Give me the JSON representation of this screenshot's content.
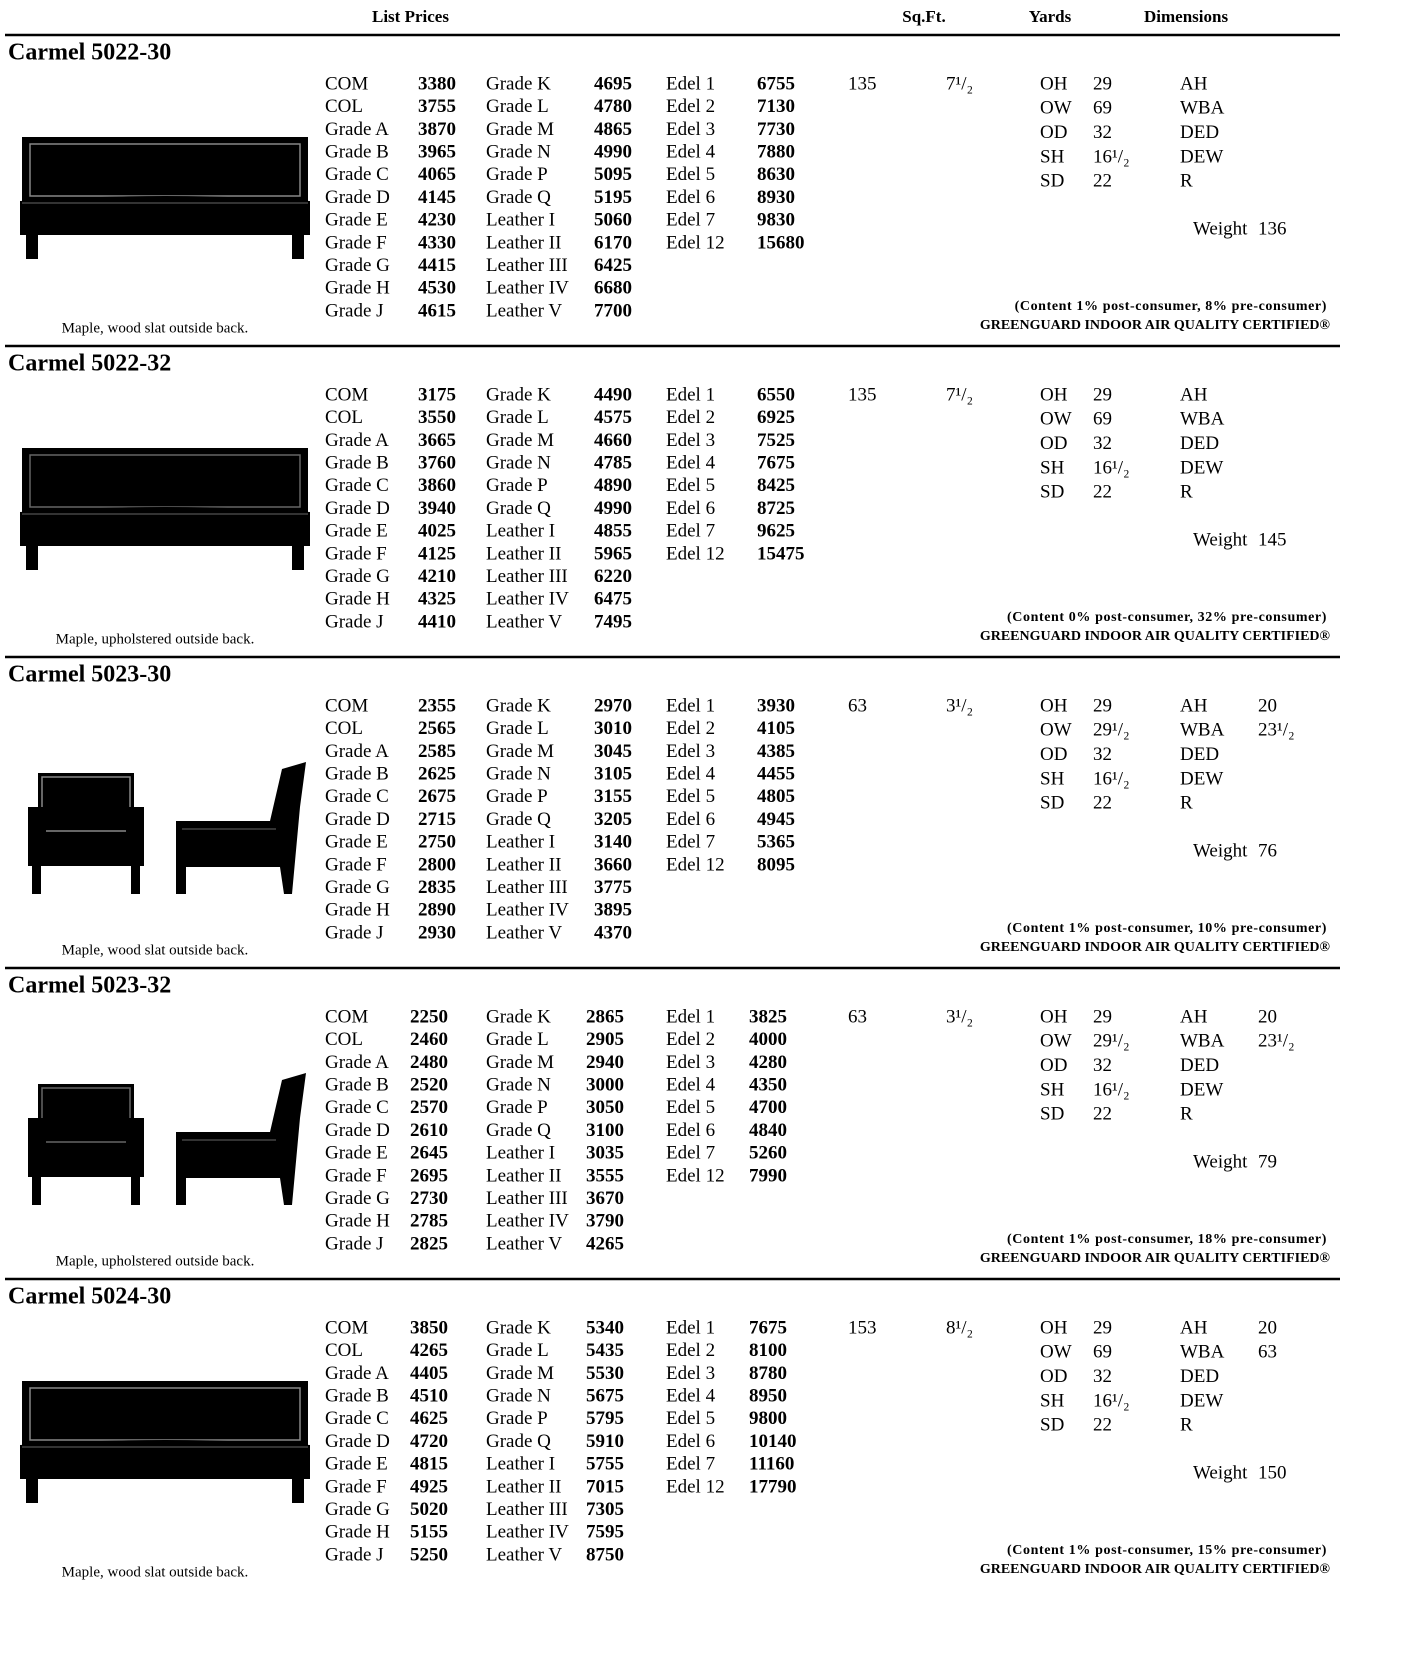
{
  "header": {
    "list_prices": "List Prices",
    "sqft": "Sq.Ft.",
    "yards": "Yards",
    "dimensions": "Dimensions"
  },
  "products": [
    {
      "title": "Carmel 5022-30",
      "caption": "Maple, wood slat outside back.",
      "columns": [
        {
          "labels": [
            "COM",
            "COL",
            "Grade A",
            "Grade B",
            "Grade C",
            "Grade D",
            "Grade E",
            "Grade F",
            "Grade G",
            "Grade H",
            "Grade J"
          ],
          "values": [
            3380,
            3755,
            3870,
            3965,
            4065,
            4145,
            4230,
            4330,
            4415,
            4530,
            4615
          ]
        },
        {
          "labels": [
            "Grade K",
            "Grade L",
            "Grade M",
            "Grade N",
            "Grade P",
            "Grade Q",
            "Leather I",
            "Leather II",
            "Leather III",
            "Leather IV",
            "Leather V"
          ],
          "values": [
            4695,
            4780,
            4865,
            4990,
            5095,
            5195,
            5060,
            6170,
            6425,
            6680,
            7700
          ]
        },
        {
          "labels": [
            "Edel 1",
            "Edel 2",
            "Edel 3",
            "Edel 4",
            "Edel 5",
            "Edel 6",
            "Edel 7",
            "Edel 12"
          ],
          "values": [
            6755,
            7130,
            7730,
            7880,
            8630,
            8930,
            9830,
            15680
          ]
        }
      ],
      "sqft": 135,
      "yards": "7¹/₂",
      "dims": [
        [
          "OH",
          29
        ],
        [
          "OW",
          69
        ],
        [
          "OD",
          32
        ],
        [
          "SH",
          "16¹/₂"
        ],
        [
          "SD",
          22
        ]
      ],
      "extra": [
        [
          "AH"
        ],
        [
          "WBA"
        ],
        [
          "DED"
        ],
        [
          "DEW"
        ],
        [
          "R"
        ]
      ],
      "weight": {
        "label": "Weight",
        "value": 136
      },
      "content": "(Content 1% post-consumer, 8% pre-consumer)",
      "certification": "GREENGUARD INDOOR AIR QUALITY CERTIFIED®"
    },
    {
      "title": "Carmel 5022-32",
      "caption": "Maple, upholstered outside back.",
      "columns": [
        {
          "labels": [
            "COM",
            "COL",
            "Grade A",
            "Grade B",
            "Grade C",
            "Grade D",
            "Grade E",
            "Grade F",
            "Grade G",
            "Grade H",
            "Grade J"
          ],
          "values": [
            3175,
            3550,
            3665,
            3760,
            3860,
            3940,
            4025,
            4125,
            4210,
            4325,
            4410
          ]
        },
        {
          "labels": [
            "Grade K",
            "Grade L",
            "Grade M",
            "Grade N",
            "Grade P",
            "Grade Q",
            "Leather I",
            "Leather II",
            "Leather III",
            "Leather IV",
            "Leather V"
          ],
          "values": [
            4490,
            4575,
            4660,
            4785,
            4890,
            4990,
            4855,
            5965,
            6220,
            6475,
            7495
          ]
        },
        {
          "labels": [
            "Edel 1",
            "Edel 2",
            "Edel 3",
            "Edel 4",
            "Edel 5",
            "Edel 6",
            "Edel 7",
            "Edel 12"
          ],
          "values": [
            6550,
            6925,
            7525,
            7675,
            8425,
            8725,
            9625,
            15475
          ]
        }
      ],
      "sqft": 135,
      "yards": "7¹/₂",
      "dims": [
        [
          "OH",
          29
        ],
        [
          "OW",
          69
        ],
        [
          "OD",
          32
        ],
        [
          "SH",
          "16¹/₂"
        ],
        [
          "SD",
          22
        ]
      ],
      "extra": [
        [
          "AH"
        ],
        [
          "WBA"
        ],
        [
          "DED"
        ],
        [
          "DEW"
        ],
        [
          "R"
        ]
      ],
      "weight": {
        "label": "Weight",
        "value": 145
      },
      "content": "(Content 0% post-consumer, 32% pre-consumer)",
      "certification": "GREENGUARD INDOOR AIR QUALITY CERTIFIED®"
    },
    {
      "title": "Carmel 5023-30",
      "caption": "Maple, wood slat outside back.",
      "columns": [
        {
          "labels": [
            "COM",
            "COL",
            "Grade A",
            "Grade B",
            "Grade C",
            "Grade D",
            "Grade E",
            "Grade F",
            "Grade G",
            "Grade H",
            "Grade J"
          ],
          "values": [
            2355,
            2565,
            2585,
            2625,
            2675,
            2715,
            2750,
            2800,
            2835,
            2890,
            2930
          ]
        },
        {
          "labels": [
            "Grade K",
            "Grade L",
            "Grade M",
            "Grade N",
            "Grade P",
            "Grade Q",
            "Leather I",
            "Leather II",
            "Leather III",
            "Leather IV",
            "Leather V"
          ],
          "values": [
            2970,
            3010,
            3045,
            3105,
            3155,
            3205,
            3140,
            3660,
            3775,
            3895,
            4370
          ]
        },
        {
          "labels": [
            "Edel 1",
            "Edel 2",
            "Edel 3",
            "Edel 4",
            "Edel 5",
            "Edel 6",
            "Edel 7",
            "Edel 12"
          ],
          "values": [
            3930,
            4105,
            4385,
            4455,
            4805,
            4945,
            5365,
            8095
          ]
        }
      ],
      "sqft": 63,
      "yards": "3¹/₂",
      "dims": [
        [
          "OH",
          29
        ],
        [
          "OW",
          "29¹/₂"
        ],
        [
          "OD",
          32
        ],
        [
          "SH",
          "16¹/₂"
        ],
        [
          "SD",
          22
        ]
      ],
      "extra": [
        [
          "AH",
          20
        ],
        [
          "WBA",
          "23¹/₂"
        ],
        [
          "DED"
        ],
        [
          "DEW"
        ],
        [
          "R"
        ]
      ],
      "weight": {
        "label": "Weight",
        "value": 76
      },
      "content": "(Content 1% post-consumer, 10% pre-consumer)",
      "certification": "GREENGUARD INDOOR AIR QUALITY CERTIFIED®"
    },
    {
      "title": "Carmel 5023-32",
      "caption": "Maple, upholstered outside back.",
      "columns": [
        {
          "labels": [
            "COM",
            "COL",
            "Grade A",
            "Grade B",
            "Grade C",
            "Grade D",
            "Grade E",
            "Grade F",
            "Grade G",
            "Grade H",
            "Grade J"
          ],
          "values": [
            2250,
            2460,
            2480,
            2520,
            2570,
            2610,
            2645,
            2695,
            2730,
            2785,
            2825
          ]
        },
        {
          "labels": [
            "Grade K",
            "Grade L",
            "Grade M",
            "Grade N",
            "Grade P",
            "Grade Q",
            "Leather I",
            "Leather II",
            "Leather III",
            "Leather IV",
            "Leather V"
          ],
          "values": [
            2865,
            2905,
            2940,
            3000,
            3050,
            3100,
            3035,
            3555,
            3670,
            3790,
            4265
          ]
        },
        {
          "labels": [
            "Edel 1",
            "Edel 2",
            "Edel 3",
            "Edel 4",
            "Edel 5",
            "Edel 6",
            "Edel 7",
            "Edel 12"
          ],
          "values": [
            3825,
            4000,
            4280,
            4350,
            4700,
            4840,
            5260,
            7990
          ]
        }
      ],
      "sqft": 63,
      "yards": "3¹/₂",
      "dims": [
        [
          "OH",
          29
        ],
        [
          "OW",
          "29¹/₂"
        ],
        [
          "OD",
          32
        ],
        [
          "SH",
          "16¹/₂"
        ],
        [
          "SD",
          22
        ]
      ],
      "extra": [
        [
          "AH",
          20
        ],
        [
          "WBA",
          "23¹/₂"
        ],
        [
          "DED"
        ],
        [
          "DEW"
        ],
        [
          "R"
        ]
      ],
      "weight": {
        "label": "Weight",
        "value": 79
      },
      "content": "(Content 1% post-consumer, 18% pre-consumer)",
      "certification": "GREENGUARD INDOOR AIR QUALITY CERTIFIED®"
    },
    {
      "title": "Carmel 5024-30",
      "caption": "Maple, wood slat outside back.",
      "columns": [
        {
          "labels": [
            "COM",
            "COL",
            "Grade A",
            "Grade B",
            "Grade C",
            "Grade D",
            "Grade E",
            "Grade F",
            "Grade G",
            "Grade H",
            "Grade J"
          ],
          "values": [
            3850,
            4265,
            4405,
            4510,
            4625,
            4720,
            4815,
            4925,
            5020,
            5155,
            5250
          ]
        },
        {
          "labels": [
            "Grade K",
            "Grade L",
            "Grade M",
            "Grade N",
            "Grade P",
            "Grade Q",
            "Leather I",
            "Leather II",
            "Leather III",
            "Leather IV",
            "Leather V"
          ],
          "values": [
            5340,
            5435,
            5530,
            5675,
            5795,
            5910,
            5755,
            7015,
            7305,
            7595,
            8750
          ]
        },
        {
          "labels": [
            "Edel 1",
            "Edel 2",
            "Edel 3",
            "Edel 4",
            "Edel 5",
            "Edel 6",
            "Edel 7",
            "Edel 12"
          ],
          "values": [
            7675,
            8100,
            8780,
            8950,
            9800,
            10140,
            11160,
            17790
          ]
        }
      ],
      "sqft": 153,
      "yards": "8¹/₂",
      "dims": [
        [
          "OH",
          29
        ],
        [
          "OW",
          69
        ],
        [
          "OD",
          32
        ],
        [
          "SH",
          "16¹/₂"
        ],
        [
          "SD",
          22
        ]
      ],
      "extra": [
        [
          "AH",
          20
        ],
        [
          "WBA",
          63
        ],
        [
          "DED"
        ],
        [
          "DEW"
        ],
        [
          "R"
        ]
      ],
      "weight": {
        "label": "Weight",
        "value": 150
      },
      "content": "(Content 1% post-consumer, 15% pre-consumer)",
      "certification": "GREENGUARD INDOOR AIR QUALITY CERTIFIED®"
    }
  ]
}
